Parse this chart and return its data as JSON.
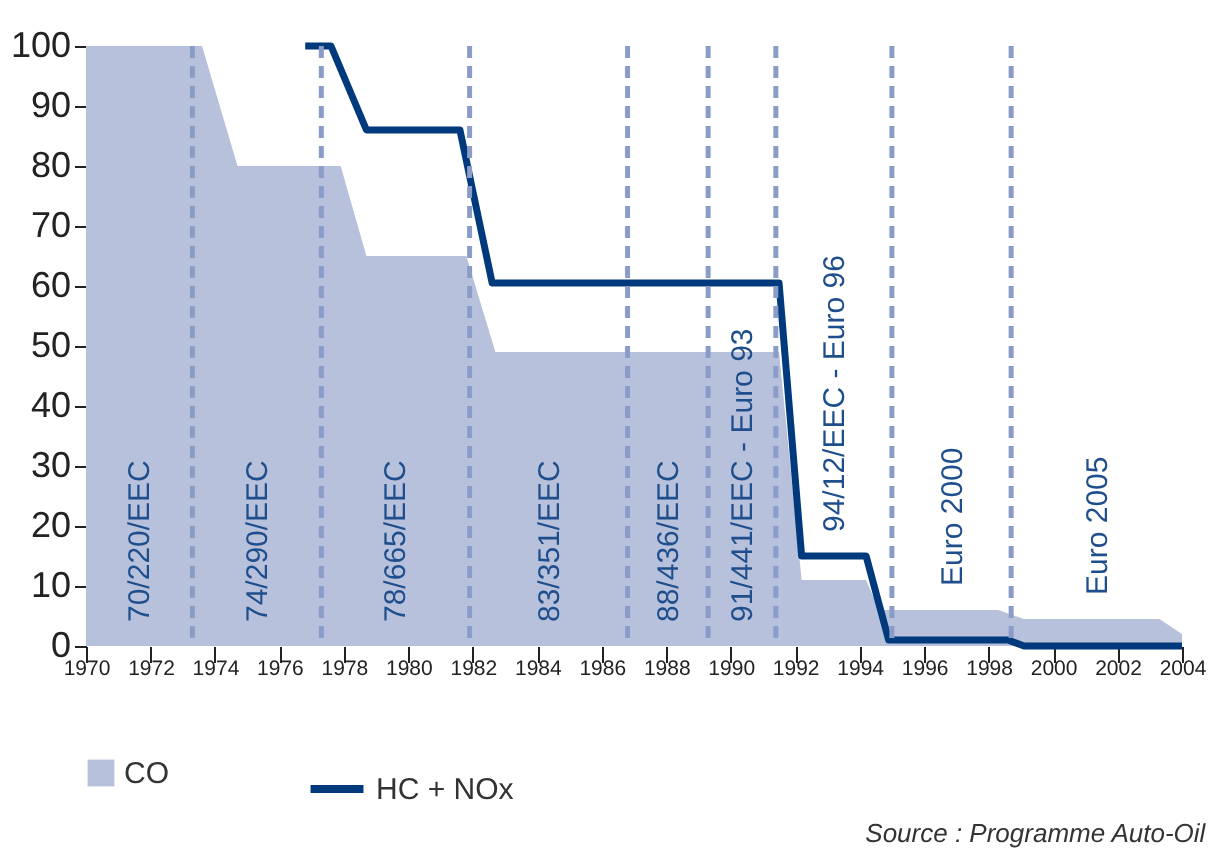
{
  "chart_data": {
    "type": "area",
    "xlim": [
      1970,
      2004
    ],
    "xticks": [
      1970,
      1972,
      1974,
      1976,
      1978,
      1980,
      1982,
      1984,
      1986,
      1988,
      1990,
      1992,
      1994,
      1996,
      1998,
      2000,
      2002,
      2004
    ],
    "ylim": [
      0,
      100
    ],
    "yticks": [
      0,
      10,
      20,
      30,
      40,
      50,
      60,
      70,
      80,
      90,
      100
    ],
    "legend": "bottom left",
    "line_style": "solid",
    "series": [
      {
        "name": "CO",
        "color": "#b8c1dc",
        "x": [
          1970,
          1973.6,
          1974.7,
          1977.9,
          1978.7,
          1981.8,
          1982.7,
          1991.5,
          1992.2,
          1994.2,
          1994.6,
          1998.3,
          1999.1,
          2003.3,
          2004
        ],
        "values": [
          100,
          100,
          80,
          80,
          65,
          65,
          49,
          49,
          11,
          11,
          6,
          6,
          4.5,
          4.5,
          2
        ]
      },
      {
        "name": "HC + NOx",
        "type": "line",
        "color": "#003a7d",
        "x": [
          1976.8,
          1977.6,
          1978.7,
          1981.6,
          1982.6,
          1991.5,
          1992.2,
          1994.2,
          1994.9,
          1998.6,
          1999.1,
          2004
        ],
        "values": [
          100,
          100,
          86,
          86,
          60.5,
          60.5,
          15,
          15,
          1,
          1,
          0,
          0
        ]
      }
    ],
    "ref_lines": [
      {
        "axis": "x",
        "value": 1973.3,
        "color": "#8a9cc8",
        "line_style": "dashed"
      },
      {
        "axis": "x",
        "value": 1977.3,
        "color": "#8a9cc8",
        "line_style": "dashed"
      },
      {
        "axis": "x",
        "value": 1981.9,
        "color": "#8a9cc8",
        "line_style": "dashed"
      },
      {
        "axis": "x",
        "value": 1986.8,
        "color": "#8a9cc8",
        "line_style": "dashed"
      },
      {
        "axis": "x",
        "value": 1989.3,
        "color": "#8a9cc8",
        "line_style": "dashed"
      },
      {
        "axis": "x",
        "value": 1991.4,
        "color": "#8a9cc8",
        "line_style": "dashed"
      },
      {
        "axis": "x",
        "value": 1995,
        "color": "#8a9cc8",
        "line_style": "dashed"
      },
      {
        "axis": "x",
        "value": 1998.7,
        "color": "#8a9cc8",
        "line_style": "dashed"
      }
    ],
    "annotations": [
      "70/220/EEC",
      "74/290/EEC",
      "78/665/EEC",
      "83/351/EEC",
      "88/436/EEC",
      "91/441/EEC - Euro 93",
      "94/12/EEC - Euro 96",
      "Euro 2000",
      "Euro 2005",
      "Source : Programme Auto-Oil"
    ]
  }
}
